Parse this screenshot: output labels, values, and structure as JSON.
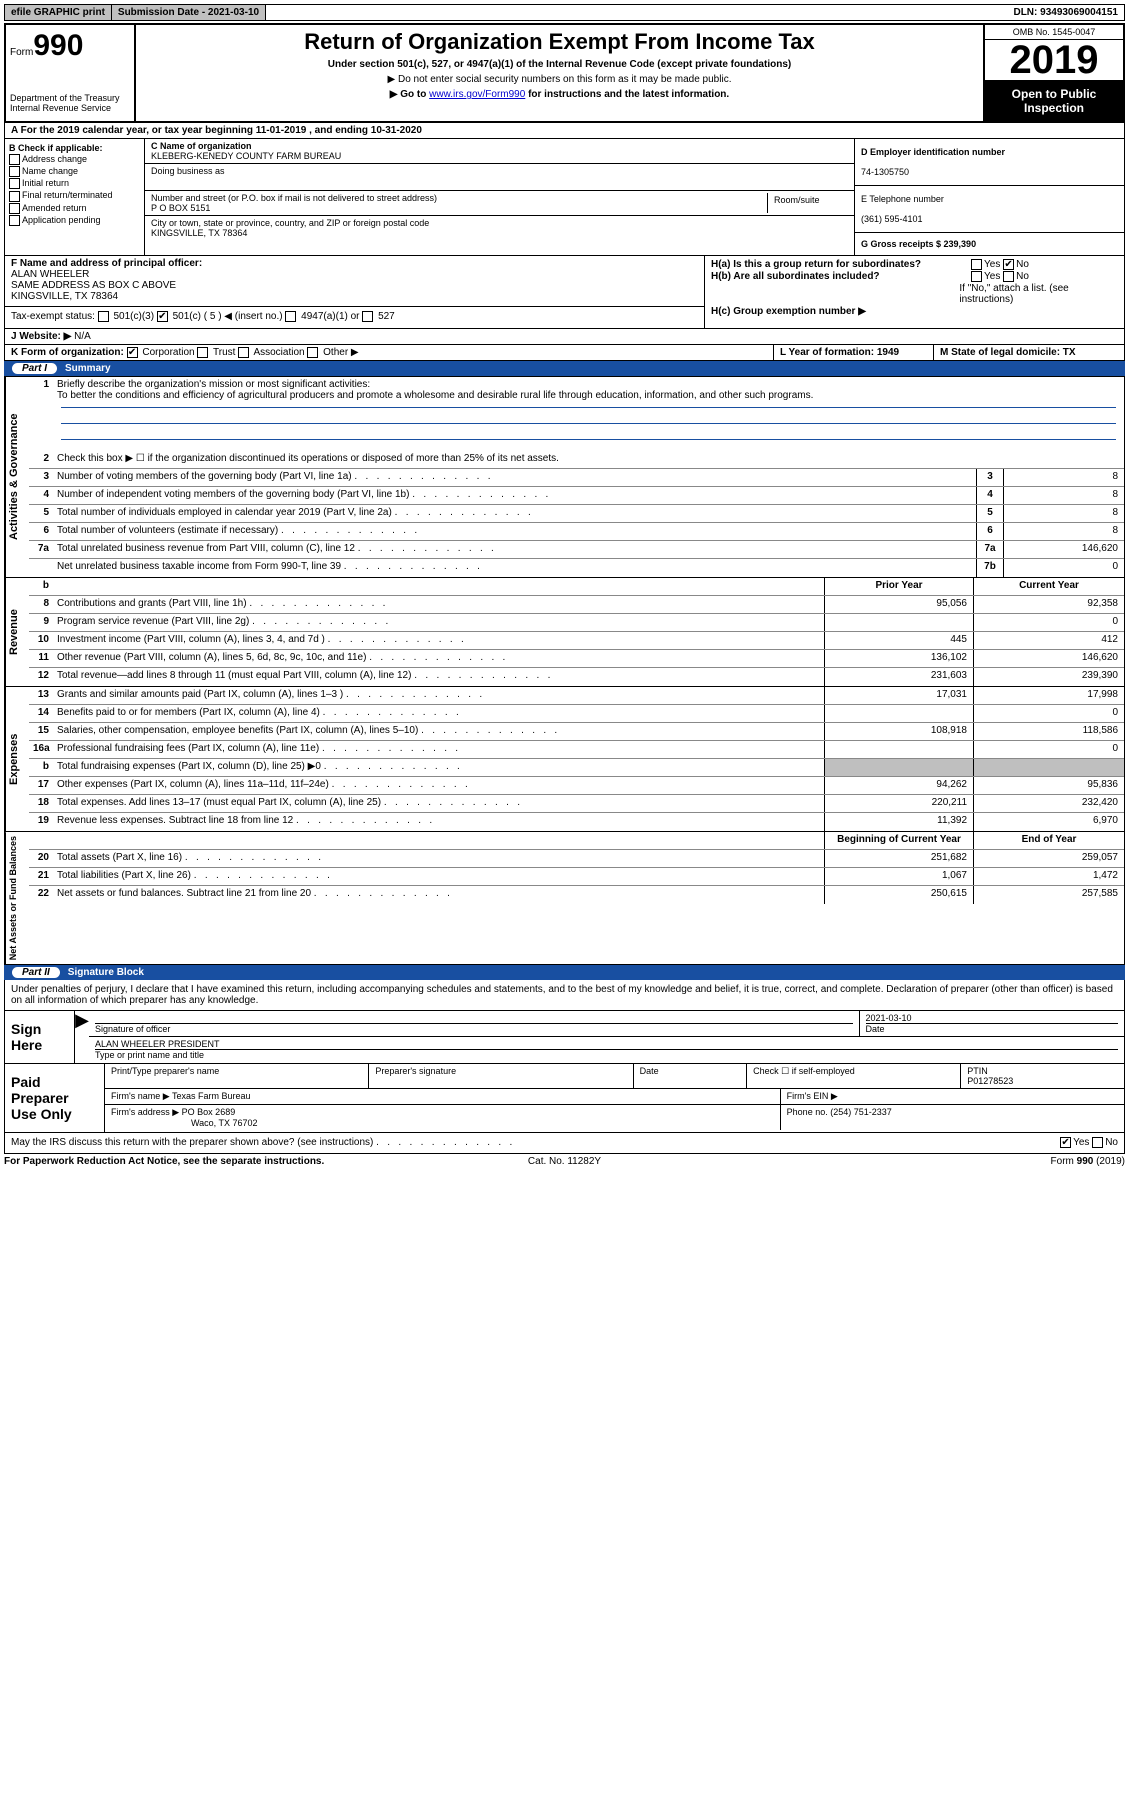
{
  "topbar": {
    "efile": "efile GRAPHIC print",
    "submission": "Submission Date - 2021-03-10",
    "dln": "DLN: 93493069004151"
  },
  "header": {
    "form_label": "Form",
    "form_number": "990",
    "dept": "Department of the Treasury\nInternal Revenue Service",
    "title": "Return of Organization Exempt From Income Tax",
    "sub": "Under section 501(c), 527, or 4947(a)(1) of the Internal Revenue Code (except private foundations)",
    "note1": "▶ Do not enter social security numbers on this form as it may be made public.",
    "note2_pre": "▶ Go to ",
    "note2_link": "www.irs.gov/Form990",
    "note2_post": " for instructions and the latest information.",
    "omb": "OMB No. 1545-0047",
    "year": "2019",
    "open": "Open to Public Inspection"
  },
  "row_a": "A For the 2019 calendar year, or tax year beginning 11-01-2019     , and ending 10-31-2020",
  "col_b": {
    "title": "B Check if applicable:",
    "items": [
      "Address change",
      "Name change",
      "Initial return",
      "Final return/terminated",
      "Amended return",
      "Application pending"
    ]
  },
  "col_c": {
    "name_label": "C Name of organization",
    "name": "KLEBERG-KENEDY COUNTY FARM BUREAU",
    "dba_label": "Doing business as",
    "addr_label": "Number and street (or P.O. box if mail is not delivered to street address)",
    "addr": "P O BOX 5151",
    "room_label": "Room/suite",
    "city_label": "City or town, state or province, country, and ZIP or foreign postal code",
    "city": "KINGSVILLE, TX   78364"
  },
  "col_d": {
    "ein_label": "D Employer identification number",
    "ein": "74-1305750",
    "phone_label": "E Telephone number",
    "phone": "(361) 595-4101",
    "gross_label": "G Gross receipts $ 239,390"
  },
  "col_f": {
    "label": "F  Name and address of principal officer:",
    "name": "ALAN WHEELER",
    "addr1": "SAME ADDRESS AS BOX C ABOVE",
    "addr2": "KINGSVILLE, TX   78364"
  },
  "col_h": {
    "ha_label": "H(a)  Is this a group return for subordinates?",
    "hb_label": "H(b)  Are all subordinates included?",
    "hb_note": "If \"No,\" attach a list. (see instructions)",
    "hc_label": "H(c)  Group exemption number ▶"
  },
  "tax_status": {
    "label": "Tax-exempt status:",
    "opt1": "501(c)(3)",
    "opt2": "501(c) ( 5 ) ◀ (insert no.)",
    "opt3": "4947(a)(1) or",
    "opt4": "527"
  },
  "website": {
    "label": "J   Website: ▶",
    "value": "N/A"
  },
  "row_k": {
    "k_label": "K Form of organization:",
    "opts": [
      "Corporation",
      "Trust",
      "Association",
      "Other ▶"
    ],
    "l_label": "L Year of formation: 1949",
    "m_label": "M State of legal domicile: TX"
  },
  "part1": {
    "num": "Part I",
    "title": "Summary"
  },
  "mission": {
    "num": "1",
    "label": "Briefly describe the organization's mission or most significant activities:",
    "text": "To better the conditions and efficiency of agricultural producers and promote a wholesome and desirable rural life through education, information, and other such programs."
  },
  "governance": {
    "tab": "Activities & Governance",
    "rows": [
      {
        "n": "2",
        "t": "Check this box ▶ ☐  if the organization discontinued its operations or disposed of more than 25% of its net assets."
      },
      {
        "n": "3",
        "t": "Number of voting members of the governing body (Part VI, line 1a)",
        "c": "3",
        "v": "8"
      },
      {
        "n": "4",
        "t": "Number of independent voting members of the governing body (Part VI, line 1b)",
        "c": "4",
        "v": "8"
      },
      {
        "n": "5",
        "t": "Total number of individuals employed in calendar year 2019 (Part V, line 2a)",
        "c": "5",
        "v": "8"
      },
      {
        "n": "6",
        "t": "Total number of volunteers (estimate if necessary)",
        "c": "6",
        "v": "8"
      },
      {
        "n": "7a",
        "t": "Total unrelated business revenue from Part VIII, column (C), line 12",
        "c": "7a",
        "v": "146,620"
      },
      {
        "n": "",
        "t": "Net unrelated business taxable income from Form 990-T, line 39",
        "c": "7b",
        "v": "0"
      }
    ]
  },
  "two_col_hdr": {
    "prior": "Prior Year",
    "curr": "Current Year"
  },
  "revenue": {
    "tab": "Revenue",
    "rows": [
      {
        "n": "8",
        "t": "Contributions and grants (Part VIII, line 1h)",
        "p": "95,056",
        "c": "92,358"
      },
      {
        "n": "9",
        "t": "Program service revenue (Part VIII, line 2g)",
        "p": "",
        "c": "0"
      },
      {
        "n": "10",
        "t": "Investment income (Part VIII, column (A), lines 3, 4, and 7d )",
        "p": "445",
        "c": "412"
      },
      {
        "n": "11",
        "t": "Other revenue (Part VIII, column (A), lines 5, 6d, 8c, 9c, 10c, and 11e)",
        "p": "136,102",
        "c": "146,620"
      },
      {
        "n": "12",
        "t": "Total revenue—add lines 8 through 11 (must equal Part VIII, column (A), line 12)",
        "p": "231,603",
        "c": "239,390"
      }
    ]
  },
  "expenses": {
    "tab": "Expenses",
    "rows": [
      {
        "n": "13",
        "t": "Grants and similar amounts paid (Part IX, column (A), lines 1–3 )",
        "p": "17,031",
        "c": "17,998"
      },
      {
        "n": "14",
        "t": "Benefits paid to or for members (Part IX, column (A), line 4)",
        "p": "",
        "c": "0"
      },
      {
        "n": "15",
        "t": "Salaries, other compensation, employee benefits (Part IX, column (A), lines 5–10)",
        "p": "108,918",
        "c": "118,586"
      },
      {
        "n": "16a",
        "t": "Professional fundraising fees (Part IX, column (A), line 11e)",
        "p": "",
        "c": "0"
      },
      {
        "n": "b",
        "t": "Total fundraising expenses (Part IX, column (D), line 25) ▶0",
        "p": "grey",
        "c": "grey"
      },
      {
        "n": "17",
        "t": "Other expenses (Part IX, column (A), lines 11a–11d, 11f–24e)",
        "p": "94,262",
        "c": "95,836"
      },
      {
        "n": "18",
        "t": "Total expenses. Add lines 13–17 (must equal Part IX, column (A), line 25)",
        "p": "220,211",
        "c": "232,420"
      },
      {
        "n": "19",
        "t": "Revenue less expenses. Subtract line 18 from line 12",
        "p": "11,392",
        "c": "6,970"
      }
    ]
  },
  "netassets_hdr": {
    "prior": "Beginning of Current Year",
    "curr": "End of Year"
  },
  "netassets": {
    "tab": "Net Assets or Fund Balances",
    "rows": [
      {
        "n": "20",
        "t": "Total assets (Part X, line 16)",
        "p": "251,682",
        "c": "259,057"
      },
      {
        "n": "21",
        "t": "Total liabilities (Part X, line 26)",
        "p": "1,067",
        "c": "1,472"
      },
      {
        "n": "22",
        "t": "Net assets or fund balances. Subtract line 21 from line 20",
        "p": "250,615",
        "c": "257,585"
      }
    ]
  },
  "part2": {
    "num": "Part II",
    "title": "Signature Block"
  },
  "sig": {
    "penalty": "Under penalties of perjury, I declare that I have examined this return, including accompanying schedules and statements, and to the best of my knowledge and belief, it is true, correct, and complete. Declaration of preparer (other than officer) is based on all information of which preparer has any knowledge.",
    "sign_here": "Sign Here",
    "sig_officer": "Signature of officer",
    "sig_date": "2021-03-10",
    "date_label": "Date",
    "officer_name": "ALAN WHEELER PRESIDENT",
    "type_print": "Type or print name and title",
    "paid": "Paid Preparer Use Only",
    "prep_name_label": "Print/Type preparer's name",
    "prep_sig_label": "Preparer's signature",
    "check_self": "Check ☐ if self-employed",
    "ptin_label": "PTIN",
    "ptin": "P01278523",
    "firm_name_label": "Firm's name     ▶",
    "firm_name": "Texas Farm Bureau",
    "firm_ein_label": "Firm's EIN ▶",
    "firm_addr_label": "Firm's address ▶",
    "firm_addr1": "PO Box 2689",
    "firm_addr2": "Waco, TX   76702",
    "firm_phone_label": "Phone no. (254) 751-2337",
    "discuss": "May the IRS discuss this return with the preparer shown above? (see instructions)"
  },
  "footer": {
    "left": "For Paperwork Reduction Act Notice, see the separate instructions.",
    "mid": "Cat. No. 11282Y",
    "right": "Form 990 (2019)"
  }
}
